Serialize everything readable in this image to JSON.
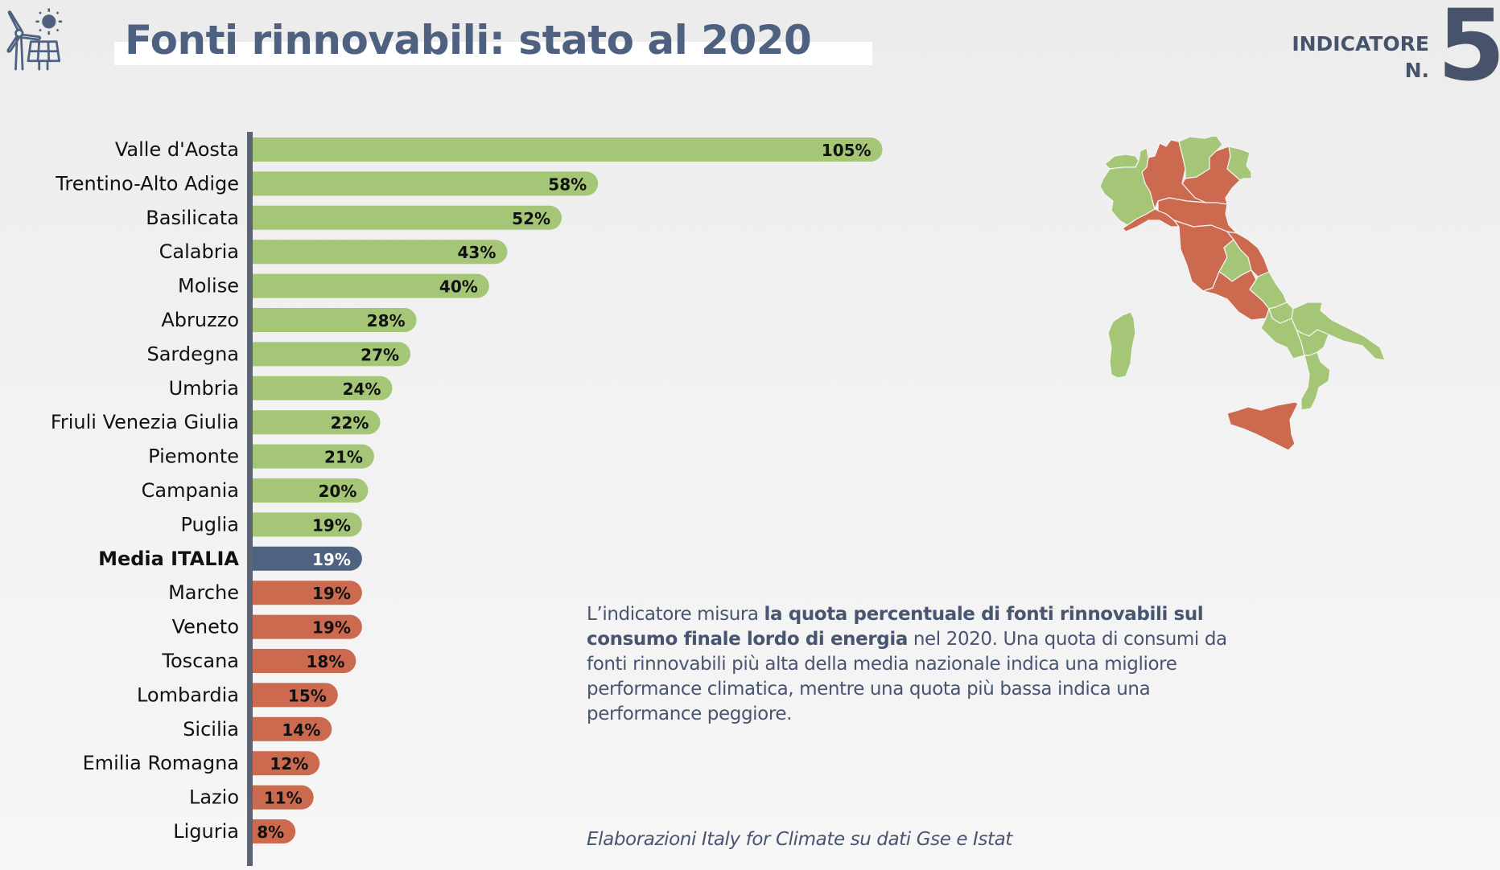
{
  "header": {
    "title": "Fonti rinnovabili: stato al 2020",
    "indicator_label_line1": "INDICATORE",
    "indicator_label_line2": "N.",
    "indicator_number": "5",
    "logo_icon": "wind-solar-icon"
  },
  "colors": {
    "above_average": "#a5c677",
    "below_average": "#cc6a50",
    "average": "#4f6380",
    "axis": "#5a6474",
    "text_dark": "#475571"
  },
  "chart_data": {
    "type": "bar",
    "orientation": "horizontal",
    "title": "Fonti rinnovabili: stato al 2020",
    "xlabel": "",
    "ylabel": "",
    "unit": "%",
    "xlim": [
      0,
      105
    ],
    "grid": false,
    "categories": [
      "Valle d'Aosta",
      "Trentino-Alto Adige",
      "Basilicata",
      "Calabria",
      "Molise",
      "Abruzzo",
      "Sardegna",
      "Umbria",
      "Friuli Venezia Giulia",
      "Piemonte",
      "Campania",
      "Puglia",
      "Media ITALIA",
      "Marche",
      "Veneto",
      "Toscana",
      "Lombardia",
      "Sicilia",
      "Emilia Romagna",
      "Lazio",
      "Liguria"
    ],
    "values": [
      105,
      58,
      52,
      43,
      40,
      28,
      27,
      24,
      22,
      21,
      20,
      19,
      19,
      19,
      19,
      18,
      15,
      14,
      12,
      11,
      8
    ],
    "labels": [
      "105%",
      "58%",
      "52%",
      "43%",
      "40%",
      "28%",
      "27%",
      "24%",
      "22%",
      "21%",
      "20%",
      "19%",
      "19%",
      "19%",
      "19%",
      "18%",
      "15%",
      "14%",
      "12%",
      "11%",
      "8%"
    ],
    "groups": [
      "above",
      "above",
      "above",
      "above",
      "above",
      "above",
      "above",
      "above",
      "above",
      "above",
      "above",
      "above",
      "average",
      "below",
      "below",
      "below",
      "below",
      "below",
      "below",
      "below",
      "below"
    ],
    "highlight": "Media ITALIA"
  },
  "map": {
    "title": "Italy regions map",
    "regions": [
      {
        "name": "Valle d'Aosta",
        "group": "above"
      },
      {
        "name": "Piemonte",
        "group": "above"
      },
      {
        "name": "Liguria",
        "group": "below"
      },
      {
        "name": "Lombardia",
        "group": "below"
      },
      {
        "name": "Trentino-Alto Adige",
        "group": "above"
      },
      {
        "name": "Veneto",
        "group": "below"
      },
      {
        "name": "Friuli Venezia Giulia",
        "group": "above"
      },
      {
        "name": "Emilia Romagna",
        "group": "below"
      },
      {
        "name": "Toscana",
        "group": "below"
      },
      {
        "name": "Umbria",
        "group": "above"
      },
      {
        "name": "Marche",
        "group": "below"
      },
      {
        "name": "Lazio",
        "group": "below"
      },
      {
        "name": "Abruzzo",
        "group": "above"
      },
      {
        "name": "Molise",
        "group": "above"
      },
      {
        "name": "Campania",
        "group": "above"
      },
      {
        "name": "Puglia",
        "group": "above"
      },
      {
        "name": "Basilicata",
        "group": "above"
      },
      {
        "name": "Calabria",
        "group": "above"
      },
      {
        "name": "Sicilia",
        "group": "below"
      },
      {
        "name": "Sardegna",
        "group": "above"
      }
    ]
  },
  "description": {
    "part1": "L’indicatore misura ",
    "bold": "la quota percentuale di fonti rinnovabili sul consumo finale lordo di energia",
    "part2": " nel 2020. Una quota di consumi da fonti rinnovabili più alta della media nazionale indica una migliore performance climatica, mentre una quota più bassa indica una performance peggiore."
  },
  "source": "Elaborazioni Italy for Climate su dati Gse e Istat"
}
